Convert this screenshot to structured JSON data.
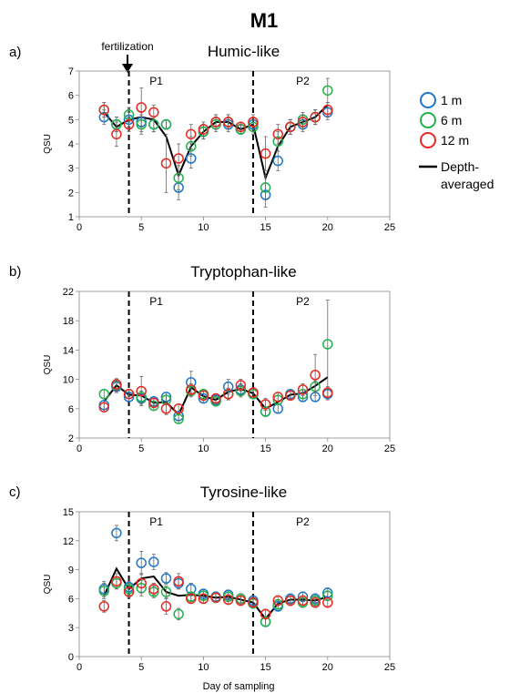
{
  "figure": {
    "title": "M1",
    "xlabel": "Day of sampling",
    "annotation": "fertilization",
    "legend": [
      {
        "name": "1 m",
        "color": "#1f77c9"
      },
      {
        "name": "6 m",
        "color": "#22b24c"
      },
      {
        "name": "12 m",
        "color": "#e8281e"
      },
      {
        "name": "Depth-",
        "color": "#000000"
      },
      {
        "name": "averaged",
        "color": "#000000"
      }
    ]
  },
  "chart_data": [
    {
      "type": "scatter",
      "panel": "a)",
      "title": "Humic-like",
      "ylabel": "QSU",
      "xlim": [
        0,
        25
      ],
      "ylim": [
        1,
        7
      ],
      "xticks": [
        0,
        5,
        10,
        15,
        20,
        25
      ],
      "yticks": [
        1,
        2,
        3,
        4,
        5,
        6,
        7
      ],
      "vlines": [
        4,
        14
      ],
      "period_labels": [
        {
          "text": "P1",
          "x": 6.2
        },
        {
          "text": "P2",
          "x": 18
        }
      ],
      "series": [
        {
          "name": "1 m",
          "color": "#1f77c9",
          "x": [
            2,
            3,
            4,
            5,
            6,
            7,
            8,
            9,
            10,
            11,
            12,
            13,
            14,
            15,
            16,
            17,
            18,
            19,
            20
          ],
          "y": [
            5.1,
            4.8,
            5.0,
            4.9,
            4.8,
            4.8,
            2.2,
            3.4,
            4.5,
            4.9,
            4.8,
            4.6,
            4.8,
            1.9,
            3.3,
            4.7,
            4.8,
            5.1,
            5.3
          ],
          "err": [
            0.3,
            0.3,
            0.3,
            0.4,
            0.3,
            0.2,
            0.5,
            0.4,
            0.3,
            0.3,
            0.3,
            0.2,
            0.3,
            0.5,
            0.4,
            0.3,
            0.3,
            0.3,
            0.3
          ]
        },
        {
          "name": "6 m",
          "color": "#22b24c",
          "x": [
            2,
            3,
            4,
            5,
            6,
            7,
            8,
            9,
            10,
            11,
            12,
            13,
            14,
            15,
            16,
            17,
            18,
            19,
            20
          ],
          "y": [
            5.4,
            4.8,
            5.2,
            4.8,
            4.8,
            4.8,
            2.6,
            3.9,
            4.5,
            4.8,
            4.9,
            4.6,
            4.7,
            2.2,
            4.1,
            4.7,
            5.0,
            5.1,
            6.2
          ],
          "err": [
            0.3,
            0.3,
            0.3,
            0.4,
            0.3,
            0.2,
            0.5,
            0.4,
            0.3,
            0.3,
            0.3,
            0.2,
            0.3,
            0.5,
            0.4,
            0.3,
            0.3,
            0.3,
            0.5
          ]
        },
        {
          "name": "12 m",
          "color": "#e8281e",
          "x": [
            2,
            3,
            4,
            5,
            6,
            7,
            8,
            9,
            10,
            11,
            12,
            13,
            14,
            15,
            16,
            17,
            18,
            19,
            20
          ],
          "y": [
            5.4,
            4.4,
            4.8,
            5.5,
            5.3,
            3.2,
            3.4,
            4.4,
            4.6,
            4.9,
            4.9,
            4.7,
            4.9,
            3.6,
            4.4,
            4.7,
            4.9,
            5.1,
            5.4
          ],
          "err": [
            0.3,
            0.5,
            0.3,
            0.8,
            0.3,
            1.2,
            0.6,
            0.4,
            0.3,
            0.3,
            0.3,
            0.2,
            0.3,
            0.7,
            0.4,
            0.3,
            0.3,
            0.3,
            0.3
          ]
        },
        {
          "name": "Depth-averaged",
          "color": "#000000",
          "line": true,
          "x": [
            2,
            3,
            4,
            5,
            6,
            7,
            8,
            9,
            10,
            11,
            12,
            13,
            14,
            15,
            16,
            17,
            18,
            19,
            20
          ],
          "y": [
            5.3,
            4.7,
            5.0,
            5.1,
            5.0,
            4.3,
            2.7,
            3.9,
            4.5,
            4.9,
            4.9,
            4.6,
            4.8,
            2.6,
            3.9,
            4.7,
            4.9,
            5.1,
            5.6
          ]
        }
      ]
    },
    {
      "type": "scatter",
      "panel": "b)",
      "title": "Tryptophan-like",
      "ylabel": "QSU",
      "xlim": [
        0,
        25
      ],
      "ylim": [
        2,
        22
      ],
      "xticks": [
        0,
        5,
        10,
        15,
        20,
        25
      ],
      "yticks": [
        2,
        6,
        10,
        14,
        18,
        22
      ],
      "vlines": [
        4,
        14
      ],
      "period_labels": [
        {
          "text": "P1",
          "x": 6.2
        },
        {
          "text": "P2",
          "x": 18
        }
      ],
      "series": [
        {
          "name": "1 m",
          "color": "#1f77c9",
          "x": [
            2,
            3,
            4,
            5,
            6,
            7,
            8,
            9,
            10,
            11,
            12,
            13,
            14,
            15,
            16,
            17,
            18,
            19,
            20
          ],
          "y": [
            6.5,
            9.0,
            7.6,
            7.4,
            7.0,
            7.6,
            5.0,
            9.6,
            7.4,
            7.2,
            9.0,
            8.6,
            8.0,
            5.6,
            6.0,
            8.0,
            7.6,
            7.6,
            8.0
          ],
          "err": [
            0.6,
            0.8,
            0.6,
            0.8,
            0.6,
            0.6,
            0.6,
            1.5,
            0.6,
            0.6,
            1.0,
            0.8,
            0.6,
            0.6,
            0.6,
            0.6,
            0.6,
            0.6,
            0.8
          ]
        },
        {
          "name": "6 m",
          "color": "#22b24c",
          "x": [
            2,
            3,
            4,
            5,
            6,
            7,
            8,
            9,
            10,
            11,
            12,
            13,
            14,
            15,
            16,
            17,
            18,
            19,
            20
          ],
          "y": [
            8.0,
            9.2,
            8.0,
            7.6,
            6.4,
            7.2,
            4.6,
            8.4,
            8.0,
            7.0,
            8.0,
            8.4,
            8.0,
            5.6,
            7.2,
            7.8,
            8.0,
            9.0,
            14.8
          ],
          "err": [
            0.6,
            0.8,
            0.6,
            0.8,
            0.6,
            0.6,
            0.6,
            0.8,
            0.6,
            0.6,
            0.8,
            0.8,
            0.6,
            0.6,
            0.6,
            0.6,
            0.6,
            0.8,
            6.0
          ]
        },
        {
          "name": "12 m",
          "color": "#e8281e",
          "x": [
            2,
            3,
            4,
            5,
            6,
            7,
            8,
            9,
            10,
            11,
            12,
            13,
            14,
            15,
            16,
            17,
            18,
            19,
            20
          ],
          "y": [
            6.2,
            9.3,
            8.0,
            8.4,
            6.8,
            6.0,
            6.0,
            8.6,
            7.8,
            7.4,
            8.0,
            9.2,
            8.2,
            6.6,
            7.6,
            7.8,
            8.6,
            10.6,
            8.2
          ],
          "err": [
            0.6,
            0.8,
            0.6,
            2.0,
            0.6,
            0.8,
            0.6,
            0.8,
            0.6,
            0.6,
            0.8,
            0.8,
            0.6,
            0.8,
            0.6,
            0.6,
            0.8,
            2.8,
            0.8
          ]
        },
        {
          "name": "Depth-averaged",
          "color": "#000000",
          "line": true,
          "x": [
            2,
            3,
            4,
            5,
            6,
            7,
            8,
            9,
            10,
            11,
            12,
            13,
            14,
            15,
            16,
            17,
            18,
            19,
            20
          ],
          "y": [
            7.0,
            9.2,
            7.9,
            7.8,
            6.8,
            6.9,
            5.2,
            8.9,
            7.7,
            7.2,
            8.3,
            8.7,
            8.1,
            6.0,
            6.9,
            7.9,
            8.1,
            9.1,
            10.3
          ]
        }
      ]
    },
    {
      "type": "scatter",
      "panel": "c)",
      "title": "Tyrosine-like",
      "ylabel": "QSU",
      "xlim": [
        0,
        25
      ],
      "ylim": [
        0,
        15
      ],
      "xticks": [
        0,
        5,
        10,
        15,
        20,
        25
      ],
      "yticks": [
        0,
        3,
        6,
        9,
        12,
        15
      ],
      "vlines": [
        4,
        14
      ],
      "period_labels": [
        {
          "text": "P1",
          "x": 6.2
        },
        {
          "text": "P2",
          "x": 18
        }
      ],
      "series": [
        {
          "name": "1 m",
          "color": "#1f77c9",
          "x": [
            2,
            3,
            4,
            5,
            6,
            7,
            8,
            9,
            10,
            11,
            12,
            13,
            14,
            15,
            16,
            17,
            18,
            19,
            20
          ],
          "y": [
            7.0,
            12.8,
            7.2,
            9.7,
            9.8,
            8.1,
            7.6,
            7.0,
            6.5,
            6.2,
            6.4,
            6.0,
            5.8,
            3.6,
            5.2,
            6.0,
            6.2,
            6.0,
            6.6
          ],
          "err": [
            0.8,
            0.8,
            0.6,
            1.2,
            0.8,
            0.6,
            0.6,
            0.6,
            0.5,
            0.5,
            0.5,
            0.5,
            0.5,
            0.5,
            0.5,
            0.5,
            0.5,
            0.5,
            0.5
          ]
        },
        {
          "name": "6 m",
          "color": "#22b24c",
          "x": [
            2,
            3,
            4,
            5,
            6,
            7,
            8,
            9,
            10,
            11,
            12,
            13,
            14,
            15,
            16,
            17,
            18,
            19,
            20
          ],
          "y": [
            6.8,
            7.6,
            7.0,
            7.1,
            6.7,
            6.7,
            4.4,
            6.2,
            6.3,
            6.1,
            6.2,
            6.0,
            5.5,
            3.6,
            5.4,
            5.8,
            5.6,
            5.8,
            6.3
          ],
          "err": [
            0.8,
            0.6,
            0.6,
            0.8,
            0.6,
            0.6,
            0.6,
            0.5,
            0.5,
            0.5,
            0.5,
            0.5,
            0.5,
            0.5,
            0.5,
            0.5,
            0.5,
            0.5,
            0.5
          ]
        },
        {
          "name": "12 m",
          "color": "#e8281e",
          "x": [
            2,
            3,
            4,
            5,
            6,
            7,
            8,
            9,
            10,
            11,
            12,
            13,
            14,
            15,
            16,
            17,
            18,
            19,
            20
          ],
          "y": [
            5.2,
            7.8,
            6.7,
            7.6,
            7.0,
            5.2,
            7.8,
            6.0,
            6.0,
            6.1,
            5.9,
            5.8,
            5.6,
            4.4,
            5.8,
            5.8,
            5.8,
            5.6,
            5.6
          ],
          "err": [
            0.6,
            0.8,
            0.6,
            1.0,
            0.6,
            0.8,
            0.8,
            0.5,
            0.5,
            0.5,
            0.5,
            0.5,
            0.5,
            0.5,
            0.5,
            0.5,
            0.5,
            0.5,
            0.5
          ]
        },
        {
          "name": "Depth-averaged",
          "color": "#000000",
          "line": true,
          "x": [
            2,
            3,
            4,
            5,
            6,
            7,
            8,
            9,
            10,
            11,
            12,
            13,
            14,
            15,
            16,
            17,
            18,
            19,
            20
          ],
          "y": [
            6.3,
            9.1,
            7.0,
            8.1,
            8.3,
            6.7,
            6.3,
            6.4,
            6.3,
            6.1,
            6.2,
            5.9,
            5.6,
            3.9,
            5.5,
            5.9,
            5.9,
            5.8,
            6.2
          ]
        }
      ]
    }
  ]
}
